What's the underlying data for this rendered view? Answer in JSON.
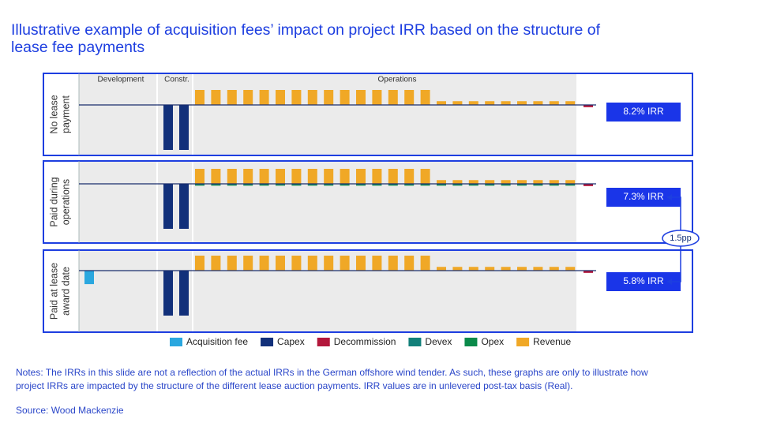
{
  "title": [
    "Illustrative example of acquisition fees’ impact on project IRR based on the structure of",
    "lease fee payments"
  ],
  "chart_data": {
    "type": "bar",
    "phases": [
      "Development",
      "Constr.",
      "Operations"
    ],
    "categories": [
      null,
      null,
      null,
      null,
      null,
      null,
      null,
      null,
      null,
      null,
      null,
      null,
      null,
      null,
      null,
      null,
      null,
      null,
      null,
      null,
      null,
      null,
      null,
      null,
      null,
      null,
      null,
      null,
      null,
      null,
      null,
      null
    ],
    "ylim": [
      -3.5,
      2
    ],
    "series": [
      {
        "name": "Acquisition fee",
        "color": "#2aa7df"
      },
      {
        "name": "Capex",
        "color": "#12307a"
      },
      {
        "name": "Decommission",
        "color": "#b3173b"
      },
      {
        "name": "Devex",
        "color": "#12807a"
      },
      {
        "name": "Opex",
        "color": "#0a8a4a"
      },
      {
        "name": "Revenue",
        "color": "#f0a826"
      }
    ],
    "panels": [
      {
        "label": [
          "No lease",
          "payment"
        ],
        "irr": "8.2% IRR",
        "series_values": [
          [
            null,
            null,
            null,
            null,
            null,
            null,
            null,
            null,
            null,
            null,
            null,
            null,
            null,
            null,
            null,
            null,
            null,
            null,
            null,
            null,
            null,
            null,
            null,
            null,
            null,
            null,
            null,
            null,
            null,
            null,
            null,
            null
          ],
          [
            null,
            null,
            null,
            null,
            null,
            -3,
            -3,
            null,
            null,
            null,
            null,
            null,
            null,
            null,
            null,
            null,
            null,
            null,
            null,
            null,
            null,
            null,
            null,
            null,
            null,
            null,
            null,
            null,
            null,
            null,
            null,
            null
          ],
          [
            null,
            null,
            null,
            null,
            null,
            null,
            null,
            null,
            null,
            null,
            null,
            null,
            null,
            null,
            null,
            null,
            null,
            null,
            null,
            null,
            null,
            null,
            null,
            null,
            null,
            null,
            null,
            null,
            null,
            null,
            null,
            -0.15
          ],
          [
            null,
            null,
            null,
            null,
            null,
            null,
            null,
            null,
            null,
            null,
            null,
            null,
            null,
            null,
            null,
            null,
            null,
            null,
            null,
            null,
            null,
            null,
            null,
            null,
            null,
            null,
            null,
            null,
            null,
            null,
            null,
            null
          ],
          [
            null,
            null,
            null,
            null,
            null,
            null,
            null,
            null,
            null,
            null,
            null,
            null,
            null,
            null,
            null,
            null,
            null,
            null,
            null,
            null,
            null,
            null,
            null,
            null,
            null,
            null,
            null,
            null,
            null,
            null,
            null,
            null
          ],
          [
            null,
            null,
            null,
            null,
            null,
            null,
            null,
            1,
            1,
            1,
            1,
            1,
            1,
            1,
            1,
            1,
            1,
            1,
            1,
            1,
            1,
            1,
            0.25,
            0.25,
            0.25,
            0.25,
            0.25,
            0.25,
            0.25,
            0.25,
            0.25,
            null
          ]
        ]
      },
      {
        "label": [
          "Paid during",
          "operations"
        ],
        "irr": "7.3% IRR",
        "series_values": [
          [
            null,
            null,
            null,
            null,
            null,
            null,
            null,
            null,
            null,
            null,
            null,
            null,
            null,
            null,
            null,
            null,
            null,
            null,
            null,
            null,
            null,
            null,
            null,
            null,
            null,
            null,
            null,
            null,
            null,
            null,
            null,
            null
          ],
          [
            null,
            null,
            null,
            null,
            null,
            -3,
            -3,
            null,
            null,
            null,
            null,
            null,
            null,
            null,
            null,
            null,
            null,
            null,
            null,
            null,
            null,
            null,
            null,
            null,
            null,
            null,
            null,
            null,
            null,
            null,
            null,
            null
          ],
          [
            null,
            null,
            null,
            null,
            null,
            null,
            null,
            null,
            null,
            null,
            null,
            null,
            null,
            null,
            null,
            null,
            null,
            null,
            null,
            null,
            null,
            null,
            null,
            null,
            null,
            null,
            null,
            null,
            null,
            null,
            null,
            -0.15
          ],
          [
            null,
            null,
            null,
            null,
            null,
            null,
            null,
            -0.05,
            -0.05,
            -0.05,
            -0.05,
            -0.05,
            -0.05,
            -0.05,
            -0.05,
            -0.05,
            -0.05,
            -0.05,
            -0.05,
            -0.05,
            -0.05,
            -0.05,
            -0.05,
            -0.05,
            -0.05,
            -0.05,
            -0.05,
            -0.05,
            -0.05,
            -0.05,
            -0.05,
            null
          ],
          [
            null,
            null,
            null,
            null,
            null,
            null,
            null,
            -0.07,
            -0.07,
            -0.07,
            -0.07,
            -0.07,
            -0.07,
            -0.07,
            -0.07,
            -0.07,
            -0.07,
            -0.07,
            -0.07,
            -0.07,
            -0.07,
            -0.07,
            -0.07,
            -0.07,
            -0.07,
            -0.07,
            -0.07,
            -0.07,
            -0.07,
            -0.07,
            -0.07,
            null
          ],
          [
            null,
            null,
            null,
            null,
            null,
            null,
            null,
            1,
            1,
            1,
            1,
            1,
            1,
            1,
            1,
            1,
            1,
            1,
            1,
            1,
            1,
            1,
            0.25,
            0.25,
            0.25,
            0.25,
            0.25,
            0.25,
            0.25,
            0.25,
            0.25,
            null
          ]
        ]
      },
      {
        "label": [
          "Paid at lease",
          "award date"
        ],
        "irr": "5.8% IRR",
        "series_values": [
          [
            -0.9,
            null,
            null,
            null,
            null,
            null,
            null,
            null,
            null,
            null,
            null,
            null,
            null,
            null,
            null,
            null,
            null,
            null,
            null,
            null,
            null,
            null,
            null,
            null,
            null,
            null,
            null,
            null,
            null,
            null,
            null,
            null
          ],
          [
            null,
            null,
            null,
            null,
            null,
            -3,
            -3,
            null,
            null,
            null,
            null,
            null,
            null,
            null,
            null,
            null,
            null,
            null,
            null,
            null,
            null,
            null,
            null,
            null,
            null,
            null,
            null,
            null,
            null,
            null,
            null,
            null
          ],
          [
            null,
            null,
            null,
            null,
            null,
            null,
            null,
            null,
            null,
            null,
            null,
            null,
            null,
            null,
            null,
            null,
            null,
            null,
            null,
            null,
            null,
            null,
            null,
            null,
            null,
            null,
            null,
            null,
            null,
            null,
            null,
            -0.15
          ],
          [
            null,
            null,
            null,
            null,
            null,
            null,
            null,
            null,
            null,
            null,
            null,
            null,
            null,
            null,
            null,
            null,
            null,
            null,
            null,
            null,
            null,
            null,
            null,
            null,
            null,
            null,
            null,
            null,
            null,
            null,
            null,
            null
          ],
          [
            null,
            null,
            null,
            null,
            null,
            null,
            null,
            null,
            null,
            null,
            null,
            null,
            null,
            null,
            null,
            null,
            null,
            null,
            null,
            null,
            null,
            null,
            null,
            null,
            null,
            null,
            null,
            null,
            null,
            null,
            null,
            null
          ],
          [
            null,
            null,
            null,
            null,
            null,
            null,
            null,
            1,
            1,
            1,
            1,
            1,
            1,
            1,
            1,
            1,
            1,
            1,
            1,
            1,
            1,
            1,
            0.25,
            0.25,
            0.25,
            0.25,
            0.25,
            0.25,
            0.25,
            0.25,
            0.25,
            null
          ]
        ]
      }
    ],
    "comparison": "1.5pp"
  },
  "notes": [
    "Notes: The IRRs in this slide are not a reflection of the actual IRRs in the German offshore wind tender. As such, these graphs are only to illustrate how",
    "project IRRs are impacted by the structure of the different lease auction payments. IRR values are in unlevered post-tax basis (Real)."
  ],
  "source": "Source: Wood Mackenzie"
}
